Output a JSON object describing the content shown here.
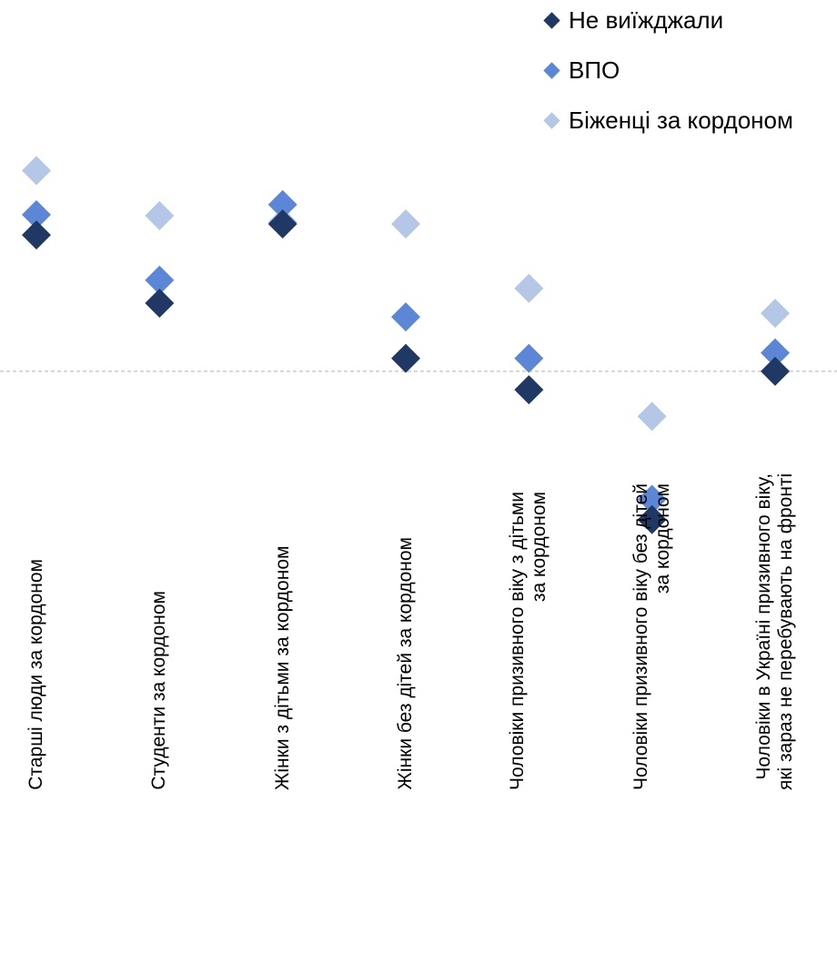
{
  "chart_data": {
    "type": "scatter",
    "title": "",
    "xlabel": "",
    "ylabel": "",
    "categories": [
      "Старші люди за кордоном",
      "Студенти за кордоном",
      "Жінки з дітьми за кордоном",
      "Жінки без дітей за кордоном",
      "Чоловіки призивного віку з дітьми за кордоном",
      "Чоловіки призивного віку без дітей за кордоном",
      "Чоловіки в Україні призивного віку, які зараз не перебувають на фронті"
    ],
    "category_label_lines": [
      [
        "Старші люди за кордоном"
      ],
      [
        "Студенти за кордоном"
      ],
      [
        "Жінки з дітьми за кордоном"
      ],
      [
        "Жінки без дітей за кордоном"
      ],
      [
        "Чоловіки призивного віку з дітьми",
        "за кордоном"
      ],
      [
        "Чоловіки призивного віку без дітей",
        "за кордоном"
      ],
      [
        "Чоловіки в Україні призивного віку,",
        "які зараз не перебувають на фронті"
      ]
    ],
    "series": [
      {
        "name": "Не виїжджали",
        "color": "#203864",
        "values": [
          1.48,
          0.74,
          1.6,
          0.14,
          -0.2,
          -1.61,
          0.0
        ]
      },
      {
        "name": "ВПО",
        "color": "#5b87d6",
        "values": [
          1.7,
          0.99,
          1.81,
          0.59,
          0.14,
          -1.39,
          0.2
        ]
      },
      {
        "name": "Біженці за кордоном",
        "color": "#b4c7e7",
        "values": [
          2.18,
          1.69,
          1.62,
          1.6,
          0.9,
          -0.49,
          0.63
        ]
      }
    ],
    "zero_line": 0,
    "zero_line_style": "dashed",
    "ylim": [
      -1.85,
      2.45
    ],
    "y_axis_visible": false,
    "grid": false,
    "legend_position": "top-right",
    "marker": "diamond"
  }
}
